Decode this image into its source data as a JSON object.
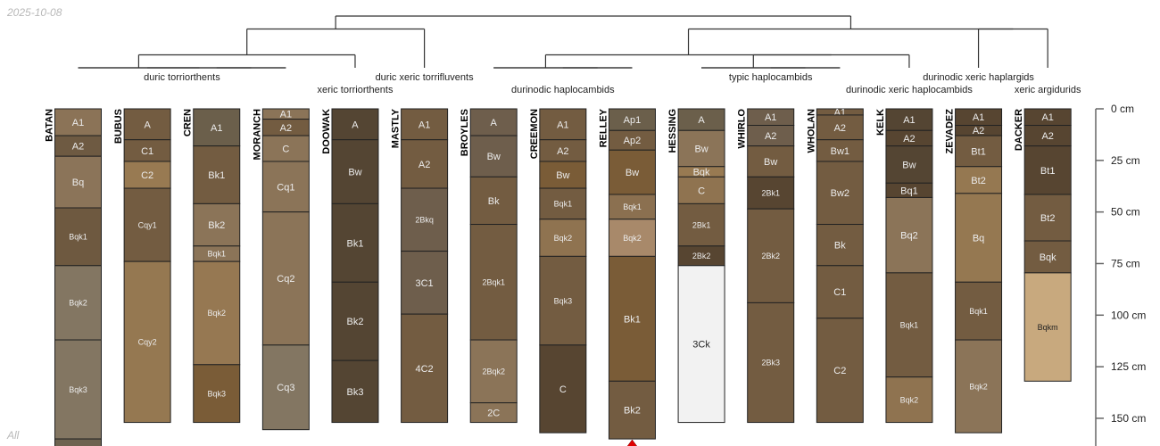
{
  "stamps": {
    "date": "2025-10-08",
    "subset": "All"
  },
  "axis": {
    "unit": "cm",
    "ticks": [
      0,
      25,
      50,
      75,
      100,
      125,
      150
    ],
    "max_depth": 175
  },
  "taxa": [
    {
      "label": "duric torriorthents",
      "members": [
        0,
        1,
        2,
        3
      ],
      "row": 1
    },
    {
      "label": "xeric torriorthents",
      "members": [
        4
      ],
      "row": 2
    },
    {
      "label": "duric xeric torrifluvents",
      "members": [
        5
      ],
      "row": 1
    },
    {
      "label": "durinodic haplocambids",
      "members": [
        6,
        7,
        8
      ],
      "row": 2
    },
    {
      "label": "typic haplocambids",
      "members": [
        9,
        10,
        11
      ],
      "row": 1
    },
    {
      "label": "durinodic xeric haplocambids",
      "members": [
        12
      ],
      "row": 2
    },
    {
      "label": "durinodic xeric haplargids",
      "members": [
        13
      ],
      "row": 1
    },
    {
      "label": "xeric argidurids",
      "members": [
        14
      ],
      "row": 2
    }
  ],
  "dendrogram": {
    "h": 4,
    "c": [
      {
        "h": 3,
        "c": [
          {
            "h": 1,
            "c": [
              {
                "h": 0,
                "c": [
                  0,
                  {
                    "h": 0,
                    "c": [
                      1,
                      {
                        "h": 0,
                        "c": [
                          2,
                          3
                        ]
                      }
                    ]
                  }
                ]
              },
              4
            ]
          },
          5
        ]
      },
      {
        "h": 3,
        "c": [
          {
            "h": 1,
            "c": [
              {
                "h": 0,
                "c": [
                  6,
                  {
                    "h": 0,
                    "c": [
                      7,
                      8
                    ]
                  }
                ]
              },
              {
                "h": 1,
                "c": [
                  {
                    "h": 0,
                    "c": [
                      9,
                      {
                        "h": 0,
                        "c": [
                          10,
                          11
                        ]
                      }
                    ]
                  },
                  12
                ]
              }
            ]
          },
          {
            "h": 3,
            "c": [
              13,
              14
            ]
          }
        ]
      }
    ]
  },
  "marker": {
    "profile": 8,
    "icon": "triangle-up-icon",
    "color": "#e00000"
  },
  "profiles": [
    {
      "name": "BATAN",
      "horizons": [
        {
          "name": "A1",
          "top": 0,
          "bottom": 13,
          "color": "#8b7357"
        },
        {
          "name": "A2",
          "top": 13,
          "bottom": 23,
          "color": "#6e5a42"
        },
        {
          "name": "Bq",
          "top": 23,
          "bottom": 48,
          "color": "#8b7459"
        },
        {
          "name": "Bqk1",
          "top": 48,
          "bottom": 76,
          "color": "#6e5940"
        },
        {
          "name": "Bqk2",
          "top": 76,
          "bottom": 112,
          "color": "#837662"
        },
        {
          "name": "Bqk3",
          "top": 112,
          "bottom": 160,
          "color": "#837662"
        },
        {
          "name": "",
          "top": 160,
          "bottom": 175,
          "color": "#6e6350"
        }
      ]
    },
    {
      "name": "BUBUS",
      "horizons": [
        {
          "name": "A",
          "top": 0,
          "bottom": 15,
          "color": "#735c41"
        },
        {
          "name": "C1",
          "top": 15,
          "bottom": 25.5,
          "color": "#735c41"
        },
        {
          "name": "C2",
          "top": 25.5,
          "bottom": 38.5,
          "color": "#987a52"
        },
        {
          "name": "Cqy1",
          "top": 38.5,
          "bottom": 74,
          "color": "#735c41"
        },
        {
          "name": "Cqy2",
          "top": 74,
          "bottom": 152,
          "color": "#957851"
        }
      ]
    },
    {
      "name": "CREN",
      "horizons": [
        {
          "name": "A1",
          "top": 0,
          "bottom": 18,
          "color": "#6b5f4b"
        },
        {
          "name": "Bk1",
          "top": 18,
          "bottom": 46,
          "color": "#735c41"
        },
        {
          "name": "Bk2",
          "top": 46,
          "bottom": 66.5,
          "color": "#8b7458"
        },
        {
          "name": "Bqk1",
          "top": 66.5,
          "bottom": 74,
          "color": "#8b7458"
        },
        {
          "name": "Bqk2",
          "top": 74,
          "bottom": 124,
          "color": "#967852"
        },
        {
          "name": "Bqk3",
          "top": 124,
          "bottom": 152,
          "color": "#7a5c37"
        }
      ]
    },
    {
      "name": "MORANCH",
      "horizons": [
        {
          "name": "A1",
          "top": 0,
          "bottom": 5,
          "color": "#8b7458"
        },
        {
          "name": "A2",
          "top": 5,
          "bottom": 13,
          "color": "#735c41"
        },
        {
          "name": "C",
          "top": 13,
          "bottom": 25.5,
          "color": "#8b7458"
        },
        {
          "name": "Cq1",
          "top": 25.5,
          "bottom": 50,
          "color": "#8b7458"
        },
        {
          "name": "Cq2",
          "top": 50,
          "bottom": 114.5,
          "color": "#8b7458"
        },
        {
          "name": "Cq3",
          "top": 114.5,
          "bottom": 155.5,
          "color": "#837662"
        }
      ]
    },
    {
      "name": "DOOWAK",
      "horizons": [
        {
          "name": "A",
          "top": 0,
          "bottom": 15,
          "color": "#544533"
        },
        {
          "name": "Bw",
          "top": 15,
          "bottom": 46,
          "color": "#544533"
        },
        {
          "name": "Bk1",
          "top": 46,
          "bottom": 84,
          "color": "#544533"
        },
        {
          "name": "Bk2",
          "top": 84,
          "bottom": 122,
          "color": "#544533"
        },
        {
          "name": "Bk3",
          "top": 122,
          "bottom": 152,
          "color": "#544533"
        }
      ]
    },
    {
      "name": "MASTLY",
      "horizons": [
        {
          "name": "A1",
          "top": 0,
          "bottom": 15,
          "color": "#735c41"
        },
        {
          "name": "A2",
          "top": 15,
          "bottom": 38.5,
          "color": "#735c41"
        },
        {
          "name": "2Bkq",
          "top": 38.5,
          "bottom": 69,
          "color": "#6e5e4c"
        },
        {
          "name": "3C1",
          "top": 69,
          "bottom": 99.5,
          "color": "#6e5e4c"
        },
        {
          "name": "4C2",
          "top": 99.5,
          "bottom": 152,
          "color": "#735c41"
        }
      ]
    },
    {
      "name": "BROYLES",
      "horizons": [
        {
          "name": "A",
          "top": 0,
          "bottom": 13,
          "color": "#6e5e4c"
        },
        {
          "name": "Bw",
          "top": 13,
          "bottom": 33,
          "color": "#6e5e4c"
        },
        {
          "name": "Bk",
          "top": 33,
          "bottom": 56,
          "color": "#735c41"
        },
        {
          "name": "2Bqk1",
          "top": 56,
          "bottom": 112,
          "color": "#735c41"
        },
        {
          "name": "2Bqk2",
          "top": 112,
          "bottom": 142.5,
          "color": "#8b7458"
        },
        {
          "name": "2C",
          "top": 142.5,
          "bottom": 152,
          "color": "#8b7458"
        }
      ]
    },
    {
      "name": "CREEMON",
      "horizons": [
        {
          "name": "A1",
          "top": 0,
          "bottom": 15,
          "color": "#735c41"
        },
        {
          "name": "A2",
          "top": 15,
          "bottom": 25.5,
          "color": "#735c41"
        },
        {
          "name": "Bw",
          "top": 25.5,
          "bottom": 38.5,
          "color": "#7a5c37"
        },
        {
          "name": "Bqk1",
          "top": 38.5,
          "bottom": 53.5,
          "color": "#735c41"
        },
        {
          "name": "Bqk2",
          "top": 53.5,
          "bottom": 71.5,
          "color": "#8f7350"
        },
        {
          "name": "Bqk3",
          "top": 71.5,
          "bottom": 114.5,
          "color": "#735c41"
        },
        {
          "name": "C",
          "top": 114.5,
          "bottom": 157,
          "color": "#574531"
        }
      ]
    },
    {
      "name": "RELLEY",
      "horizons": [
        {
          "name": "Ap1",
          "top": 0,
          "bottom": 10.5,
          "color": "#6b5f4b"
        },
        {
          "name": "Ap2",
          "top": 10.5,
          "bottom": 20,
          "color": "#735c41"
        },
        {
          "name": "Bw",
          "top": 20,
          "bottom": 41.5,
          "color": "#7a5c37"
        },
        {
          "name": "Bqk1",
          "top": 41.5,
          "bottom": 53.5,
          "color": "#8b7050"
        },
        {
          "name": "Bqk2",
          "top": 53.5,
          "bottom": 71.5,
          "color": "#a8896a"
        },
        {
          "name": "Bk1",
          "top": 71.5,
          "bottom": 132,
          "color": "#7a5c37"
        },
        {
          "name": "Bk2",
          "top": 132,
          "bottom": 160,
          "color": "#735c41"
        }
      ]
    },
    {
      "name": "HESSING",
      "horizons": [
        {
          "name": "A",
          "top": 0,
          "bottom": 10.5,
          "color": "#6b5f4b"
        },
        {
          "name": "Bw",
          "top": 10.5,
          "bottom": 28,
          "color": "#8b7458"
        },
        {
          "name": "Bqk",
          "top": 28,
          "bottom": 33,
          "color": "#987a52"
        },
        {
          "name": "C",
          "top": 33,
          "bottom": 46,
          "color": "#8f7350"
        },
        {
          "name": "2Bk1",
          "top": 46,
          "bottom": 66.5,
          "color": "#735c41"
        },
        {
          "name": "2Bk2",
          "top": 66.5,
          "bottom": 76,
          "color": "#574531"
        },
        {
          "name": "3Ck",
          "top": 76,
          "bottom": 152,
          "color": "#f2f2f2"
        }
      ]
    },
    {
      "name": "WHIRLO",
      "horizons": [
        {
          "name": "A1",
          "top": 0,
          "bottom": 8,
          "color": "#6e5e4c"
        },
        {
          "name": "A2",
          "top": 8,
          "bottom": 18,
          "color": "#6e5e4c"
        },
        {
          "name": "Bw",
          "top": 18,
          "bottom": 33,
          "color": "#735c41"
        },
        {
          "name": "2Bk1",
          "top": 33,
          "bottom": 48.5,
          "color": "#574531"
        },
        {
          "name": "2Bk2",
          "top": 48.5,
          "bottom": 94,
          "color": "#735c41"
        },
        {
          "name": "2Bk3",
          "top": 94,
          "bottom": 152,
          "color": "#735c41"
        }
      ]
    },
    {
      "name": "WHOLAN",
      "horizons": [
        {
          "name": "A1",
          "top": 0,
          "bottom": 3,
          "color": "#735c41"
        },
        {
          "name": "A2",
          "top": 3,
          "bottom": 15,
          "color": "#735c41"
        },
        {
          "name": "Bw1",
          "top": 15,
          "bottom": 25.5,
          "color": "#735c41"
        },
        {
          "name": "Bw2",
          "top": 25.5,
          "bottom": 56,
          "color": "#735c41"
        },
        {
          "name": "Bk",
          "top": 56,
          "bottom": 76,
          "color": "#735c41"
        },
        {
          "name": "C1",
          "top": 76,
          "bottom": 101.5,
          "color": "#735c41"
        },
        {
          "name": "C2",
          "top": 101.5,
          "bottom": 152,
          "color": "#735c41"
        }
      ]
    },
    {
      "name": "KELK",
      "horizons": [
        {
          "name": "A1",
          "top": 0,
          "bottom": 10.5,
          "color": "#544533"
        },
        {
          "name": "A2",
          "top": 10.5,
          "bottom": 18,
          "color": "#574531"
        },
        {
          "name": "Bw",
          "top": 18,
          "bottom": 36,
          "color": "#544533"
        },
        {
          "name": "Bq1",
          "top": 36,
          "bottom": 43,
          "color": "#574531"
        },
        {
          "name": "Bq2",
          "top": 43,
          "bottom": 79.5,
          "color": "#8b7458"
        },
        {
          "name": "Bqk1",
          "top": 79.5,
          "bottom": 130,
          "color": "#735c41"
        },
        {
          "name": "Bqk2",
          "top": 130,
          "bottom": 152,
          "color": "#8f7350"
        }
      ]
    },
    {
      "name": "ZEVADEZ",
      "horizons": [
        {
          "name": "A1",
          "top": 0,
          "bottom": 8,
          "color": "#574531"
        },
        {
          "name": "A2",
          "top": 8,
          "bottom": 13,
          "color": "#574531"
        },
        {
          "name": "Bt1",
          "top": 13,
          "bottom": 28,
          "color": "#735c41"
        },
        {
          "name": "Bt2",
          "top": 28,
          "bottom": 41,
          "color": "#957851"
        },
        {
          "name": "Bq",
          "top": 41,
          "bottom": 84,
          "color": "#957851"
        },
        {
          "name": "Bqk1",
          "top": 84,
          "bottom": 112,
          "color": "#735c41"
        },
        {
          "name": "Bqk2",
          "top": 112,
          "bottom": 157,
          "color": "#8b7458"
        }
      ]
    },
    {
      "name": "DACKER",
      "horizons": [
        {
          "name": "A1",
          "top": 0,
          "bottom": 8,
          "color": "#574531"
        },
        {
          "name": "A2",
          "top": 8,
          "bottom": 18,
          "color": "#574531"
        },
        {
          "name": "Bt1",
          "top": 18,
          "bottom": 41.5,
          "color": "#574531"
        },
        {
          "name": "Bt2",
          "top": 41.5,
          "bottom": 64,
          "color": "#735c41"
        },
        {
          "name": "Bqk",
          "top": 64,
          "bottom": 79.5,
          "color": "#735c41"
        },
        {
          "name": "Bqkm",
          "top": 79.5,
          "bottom": 132,
          "color": "#c8a97e"
        }
      ]
    }
  ]
}
